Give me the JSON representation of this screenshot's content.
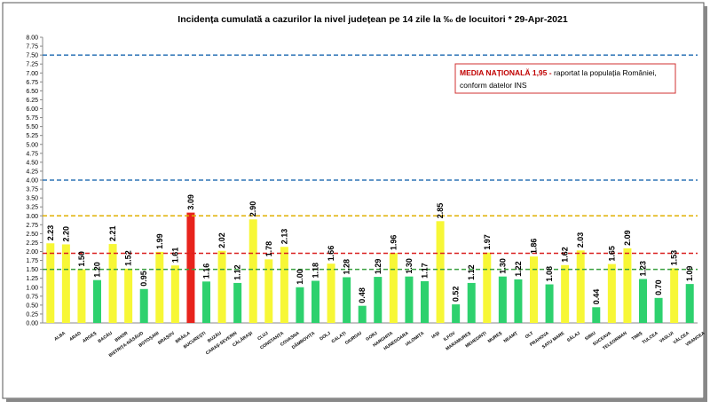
{
  "chart_data": {
    "type": "bar",
    "title": "Incidența cumulată a cazurilor la nivel județean pe 14 zile la ‰ de locuitori *   29-Apr-2021",
    "categories": [
      "ALBA",
      "ARAD",
      "ARGEȘ",
      "BACĂU",
      "BIHOR",
      "BISTRIȚA-NĂSĂUD",
      "BOTOȘANI",
      "BRAȘOV",
      "BRĂILA",
      "BUCUREȘTI",
      "BUZĂU",
      "CARAȘ-SEVERIN",
      "CĂLĂRAȘI",
      "CLUJ",
      "CONSTANȚA",
      "COVASNA",
      "DÂMBOVIȚA",
      "DOLJ",
      "GALAȚI",
      "GIURGIU",
      "GORJ",
      "HARGHITA",
      "HUNEDOARA",
      "IALOMIȚA",
      "IAȘI",
      "ILFOV",
      "MARAMUREȘ",
      "MEHEDINȚI",
      "MUREȘ",
      "NEAMȚ",
      "OLT",
      "PRAHOVA",
      "SATU MARE",
      "SĂLAJ",
      "SIBIU",
      "SUCEAVA",
      "TELEORMAN",
      "TIMIȘ",
      "TULCEA",
      "VASLUI",
      "VÂLCEA",
      "VRANCEA"
    ],
    "values": [
      2.23,
      2.2,
      1.5,
      1.2,
      2.21,
      1.52,
      0.95,
      1.99,
      1.61,
      3.09,
      1.16,
      2.02,
      1.12,
      2.9,
      1.78,
      2.13,
      1.0,
      1.18,
      1.66,
      1.28,
      0.48,
      1.29,
      1.96,
      1.3,
      1.17,
      2.85,
      0.52,
      1.12,
      1.97,
      1.3,
      1.22,
      1.86,
      1.08,
      1.62,
      2.03,
      0.44,
      1.65,
      2.09,
      1.23,
      0.7,
      1.53,
      1.09
    ],
    "value_labels": [
      "2.23",
      "2.20",
      "1.50",
      "1.20",
      "2.21",
      "1.52",
      "0.95",
      "1.99",
      "1.61",
      "3.09",
      "1.16",
      "2.02",
      "1.12",
      "2.90",
      "1.78",
      "2.13",
      "1.00",
      "1.18",
      "1.66",
      "1.28",
      "0.48",
      "1.29",
      "1.96",
      "1.30",
      "1.17",
      "2.85",
      "0.52",
      "1.12",
      "1.97",
      "1.30",
      "1.22",
      "1.86",
      "1.08",
      "1.62",
      "2.03",
      "0.44",
      "1.65",
      "2.09",
      "1.23",
      "0.70",
      "1.53",
      "1.09"
    ],
    "colors": [
      "#f7f736",
      "#f7f736",
      "#f7f736",
      "#2ed16e",
      "#f7f736",
      "#f7f736",
      "#2ed16e",
      "#f7f736",
      "#f7f736",
      "#e8231c",
      "#2ed16e",
      "#f7f736",
      "#2ed16e",
      "#f7f736",
      "#f7f736",
      "#f7f736",
      "#2ed16e",
      "#2ed16e",
      "#f7f736",
      "#2ed16e",
      "#2ed16e",
      "#2ed16e",
      "#f7f736",
      "#2ed16e",
      "#2ed16e",
      "#f7f736",
      "#2ed16e",
      "#2ed16e",
      "#f7f736",
      "#2ed16e",
      "#2ed16e",
      "#f7f736",
      "#2ed16e",
      "#f7f736",
      "#f7f736",
      "#2ed16e",
      "#f7f736",
      "#f7f736",
      "#2ed16e",
      "#2ed16e",
      "#f7f736",
      "#2ed16e"
    ],
    "ylim": [
      0,
      8
    ],
    "yticks": [
      {
        "value": 0,
        "label": "0.00"
      },
      {
        "value": 0.25,
        "label": "0.25"
      },
      {
        "value": 0.5,
        "label": "0.50"
      },
      {
        "value": 0.75,
        "label": "0.75"
      },
      {
        "value": 1,
        "label": "1.00"
      },
      {
        "value": 1.25,
        "label": "1.25"
      },
      {
        "value": 1.5,
        "label": "1.50"
      },
      {
        "value": 1.75,
        "label": "1.75"
      },
      {
        "value": 2,
        "label": "2.00"
      },
      {
        "value": 2.25,
        "label": "2.25"
      },
      {
        "value": 2.5,
        "label": "2.50"
      },
      {
        "value": 2.75,
        "label": "2.75"
      },
      {
        "value": 3,
        "label": "3.00"
      },
      {
        "value": 3.25,
        "label": "3.25"
      },
      {
        "value": 3.5,
        "label": "3.50"
      },
      {
        "value": 3.75,
        "label": "3.75"
      },
      {
        "value": 4,
        "label": "4.00"
      },
      {
        "value": 4.25,
        "label": "4.25"
      },
      {
        "value": 4.5,
        "label": "4.50"
      },
      {
        "value": 4.75,
        "label": "4.75"
      },
      {
        "value": 5,
        "label": "5.00"
      },
      {
        "value": 5.25,
        "label": "5.25"
      },
      {
        "value": 5.5,
        "label": "5.50"
      },
      {
        "value": 5.75,
        "label": "5.75"
      },
      {
        "value": 6,
        "label": "6.00"
      },
      {
        "value": 6.25,
        "label": "6.25"
      },
      {
        "value": 6.5,
        "label": "6.50"
      },
      {
        "value": 6.75,
        "label": "6.75"
      },
      {
        "value": 7,
        "label": "7.00"
      },
      {
        "value": 7.25,
        "label": "7.25"
      },
      {
        "value": 7.5,
        "label": "7.50"
      },
      {
        "value": 7.75,
        "label": "7.75"
      },
      {
        "value": 8,
        "label": "8.00"
      }
    ],
    "reference_lines": [
      {
        "value": 7.5,
        "color": "#2e75b6"
      },
      {
        "value": 4,
        "color": "#2e75b6"
      },
      {
        "value": 3,
        "color": "#e0b000"
      },
      {
        "value": 1.95,
        "color": "#d92020"
      },
      {
        "value": 1.5,
        "color": "#3aa040"
      }
    ],
    "annotation": {
      "bold": "MEDIA NAȚIONALĂ  1,95 - ",
      "text": "raportat la populația României,",
      "text2": "conform datelor INS"
    }
  }
}
